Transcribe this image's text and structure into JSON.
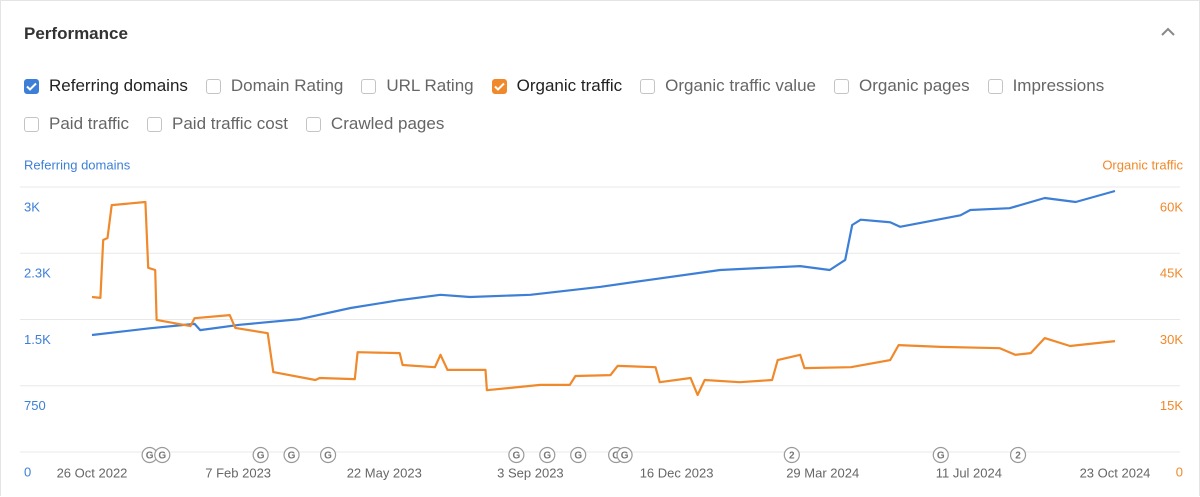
{
  "panel": {
    "title": "Performance",
    "options": [
      {
        "label": "Referring domains",
        "checked": true,
        "color": "#3d7fd6"
      },
      {
        "label": "Domain Rating",
        "checked": false
      },
      {
        "label": "URL Rating",
        "checked": false
      },
      {
        "label": "Organic traffic",
        "checked": true,
        "color": "#f0892b"
      },
      {
        "label": "Organic traffic value",
        "checked": false
      },
      {
        "label": "Organic pages",
        "checked": false
      },
      {
        "label": "Impressions",
        "checked": false
      },
      {
        "label": "Paid traffic",
        "checked": false
      },
      {
        "label": "Paid traffic cost",
        "checked": false
      },
      {
        "label": "Crawled pages",
        "checked": false
      }
    ]
  },
  "chart_data": {
    "type": "line",
    "ylabel": "Referring domains",
    "y2label": "Organic traffic",
    "xlim": [
      "2022-10-26",
      "2024-10-23"
    ],
    "xticks": [
      {
        "value": "2022-10-26",
        "label": "26 Oct 2022"
      },
      {
        "value": "2023-02-07",
        "label": "7 Feb 2023"
      },
      {
        "value": "2023-05-22",
        "label": "22 May 2023"
      },
      {
        "value": "2023-09-03",
        "label": "3 Sep 2023"
      },
      {
        "value": "2023-12-16",
        "label": "16 Dec 2023"
      },
      {
        "value": "2024-03-29",
        "label": "29 Mar 2024"
      },
      {
        "value": "2024-07-11",
        "label": "11 Jul 2024"
      },
      {
        "value": "2024-10-23",
        "label": "23 Oct 2024"
      }
    ],
    "ylim": [
      0,
      3000
    ],
    "yticks": [
      0,
      750,
      {
        "value": 1500,
        "label": "1.5K"
      },
      {
        "value": 2250,
        "label": "2.3K"
      },
      {
        "value": 3000,
        "label": "3K"
      }
    ],
    "y2lim": [
      0,
      60000
    ],
    "y2ticks": [
      0,
      {
        "value": 15000,
        "label": "15K"
      },
      {
        "value": 30000,
        "label": "30K"
      },
      {
        "value": 45000,
        "label": "45K"
      },
      {
        "value": 60000,
        "label": "60K"
      }
    ],
    "grid": true,
    "series": [
      {
        "name": "Referring domains",
        "color": "#3d7fd6",
        "axis": "y",
        "x": [
          "2022-10-26",
          "2022-12-06",
          "2023-01-07",
          "2023-01-11",
          "2023-02-08",
          "2023-03-23",
          "2023-04-28",
          "2023-06-02",
          "2023-07-01",
          "2023-07-22",
          "2023-09-03",
          "2023-10-23",
          "2023-11-27",
          "2024-01-16",
          "2024-03-13",
          "2024-04-03",
          "2024-04-14",
          "2024-04-19",
          "2024-04-25",
          "2024-05-16",
          "2024-05-23",
          "2024-07-05",
          "2024-07-12",
          "2024-08-09",
          "2024-09-03",
          "2024-09-25",
          "2024-10-23"
        ],
        "values": [
          1325,
          1400,
          1450,
          1380,
          1440,
          1505,
          1630,
          1720,
          1780,
          1755,
          1780,
          1870,
          1950,
          2060,
          2105,
          2060,
          2175,
          2570,
          2630,
          2600,
          2550,
          2680,
          2740,
          2760,
          2875,
          2830,
          2955
        ]
      },
      {
        "name": "Organic traffic",
        "color": "#f0892b",
        "axis": "y2",
        "x": [
          "2022-10-26",
          "2022-11-01",
          "2022-11-03",
          "2022-11-06",
          "2022-11-09",
          "2022-12-03",
          "2022-12-05",
          "2022-12-10",
          "2022-12-11",
          "2023-01-04",
          "2023-01-07",
          "2023-02-01",
          "2023-02-05",
          "2023-02-28",
          "2023-03-04",
          "2023-04-03",
          "2023-04-06",
          "2023-05-01",
          "2023-05-03",
          "2023-06-02",
          "2023-06-04",
          "2023-06-27",
          "2023-07-01",
          "2023-07-06",
          "2023-08-02",
          "2023-08-03",
          "2023-09-10",
          "2023-10-01",
          "2023-10-05",
          "2023-10-30",
          "2023-11-04",
          "2023-12-01",
          "2023-12-04",
          "2023-12-26",
          "2023-12-31",
          "2024-01-05",
          "2024-01-30",
          "2024-02-22",
          "2024-02-26",
          "2024-03-13",
          "2024-03-16",
          "2024-04-18",
          "2024-05-16",
          "2024-05-22",
          "2024-06-21",
          "2024-08-02",
          "2024-08-13",
          "2024-08-24",
          "2024-09-03",
          "2024-09-21",
          "2024-10-23"
        ],
        "values": [
          35100,
          34900,
          48000,
          48450,
          55900,
          56600,
          41700,
          41200,
          29900,
          28500,
          30300,
          31000,
          28100,
          26900,
          18100,
          16300,
          16750,
          16500,
          22600,
          22400,
          19700,
          19200,
          22000,
          18600,
          18600,
          14000,
          15200,
          15200,
          17200,
          17400,
          19500,
          19200,
          15800,
          16750,
          12900,
          16300,
          15800,
          16300,
          20800,
          22000,
          19000,
          19200,
          20800,
          24200,
          23800,
          23500,
          22000,
          22400,
          25800,
          24000,
          25100
        ]
      }
    ],
    "markers": [
      {
        "x": "2022-12-06",
        "label": "G"
      },
      {
        "x": "2022-12-15",
        "label": "G"
      },
      {
        "x": "2023-02-23",
        "label": "G"
      },
      {
        "x": "2023-03-17",
        "label": "G"
      },
      {
        "x": "2023-04-12",
        "label": "G"
      },
      {
        "x": "2023-08-24",
        "label": "G"
      },
      {
        "x": "2023-09-15",
        "label": "G"
      },
      {
        "x": "2023-10-07",
        "label": "G"
      },
      {
        "x": "2023-11-03",
        "label": "G"
      },
      {
        "x": "2023-11-09",
        "label": "G"
      },
      {
        "x": "2024-03-07",
        "label": "2"
      },
      {
        "x": "2024-06-21",
        "label": "G"
      },
      {
        "x": "2024-08-15",
        "label": "2"
      }
    ]
  }
}
